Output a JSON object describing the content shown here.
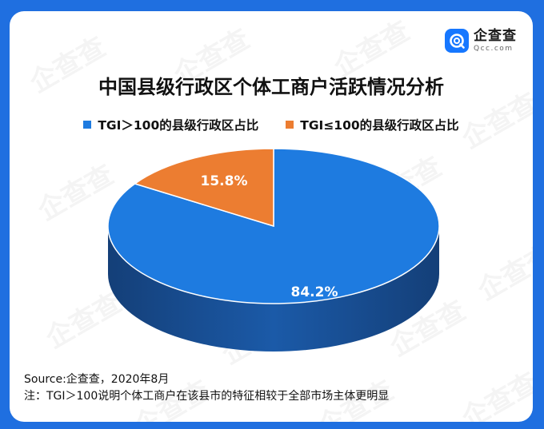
{
  "colors": {
    "frame": "#1f6fe0",
    "series1": "#1e7be0",
    "series1_side": "#143f78",
    "series2": "#ec7d31",
    "series2_side": "#a6531d"
  },
  "logo": {
    "icon": "qcc-logo-icon",
    "name": "企查查",
    "domain": "Qcc.com"
  },
  "watermark_text": "企查查",
  "chart_data": {
    "type": "pie",
    "title": "中国县级行政区个体工商户活跃情况分析",
    "legend_position": "top",
    "categories": [
      "TGI＞100的县级行政区占比",
      "TGI≤100的县级行政区占比"
    ],
    "values": [
      84.2,
      15.8
    ],
    "data_labels": [
      "84.2%",
      "15.8%"
    ]
  },
  "footer": {
    "source": "Source:企查查，2020年8月",
    "note": "注：TGI＞100说明个体工商户在该县市的特征相较于全部市场主体更明显"
  }
}
